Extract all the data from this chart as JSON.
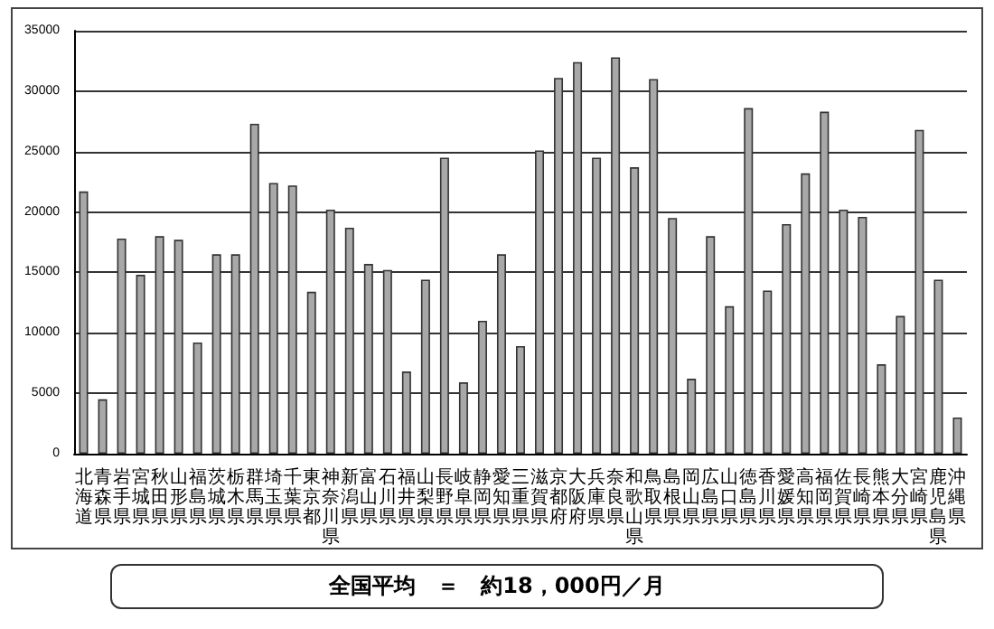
{
  "chart_data": {
    "type": "bar",
    "categories": [
      "北海道",
      "青森県",
      "岩手県",
      "宮城県",
      "秋田県",
      "山形県",
      "福島県",
      "茨城県",
      "栃木県",
      "群馬県",
      "埼玉県",
      "千葉県",
      "東京都",
      "神奈川県",
      "新潟県",
      "富山県",
      "石川県",
      "福井県",
      "山梨県",
      "長野県",
      "岐阜県",
      "静岡県",
      "愛知県",
      "三重県",
      "滋賀県",
      "京都府",
      "大阪府",
      "兵庫県",
      "奈良県",
      "和歌山県",
      "鳥取県",
      "島根県",
      "岡山県",
      "広島県",
      "山口県",
      "徳島県",
      "香川県",
      "愛媛県",
      "高知県",
      "福岡県",
      "佐賀県",
      "長崎県",
      "熊本県",
      "大分県",
      "宮崎県",
      "鹿児島県",
      "沖縄県"
    ],
    "values": [
      21700,
      4500,
      17800,
      14800,
      18000,
      17700,
      9200,
      16500,
      16500,
      27300,
      22400,
      22200,
      13400,
      20200,
      18700,
      15700,
      15200,
      6800,
      14400,
      24500,
      5900,
      11000,
      16500,
      8900,
      25100,
      31100,
      32400,
      24500,
      32800,
      23700,
      31000,
      19500,
      6200,
      18000,
      12200,
      28600,
      13500,
      19000,
      23200,
      28300,
      20200,
      19600,
      7400,
      11400,
      26800,
      14400,
      3000
    ],
    "color": "#a8a8a8",
    "ylim": [
      0,
      35000
    ],
    "yticks": [
      0,
      5000,
      10000,
      15000,
      20000,
      25000,
      30000,
      35000
    ],
    "grid": "y",
    "annotations": [
      "全国平均　＝　約18，000円／月"
    ]
  }
}
